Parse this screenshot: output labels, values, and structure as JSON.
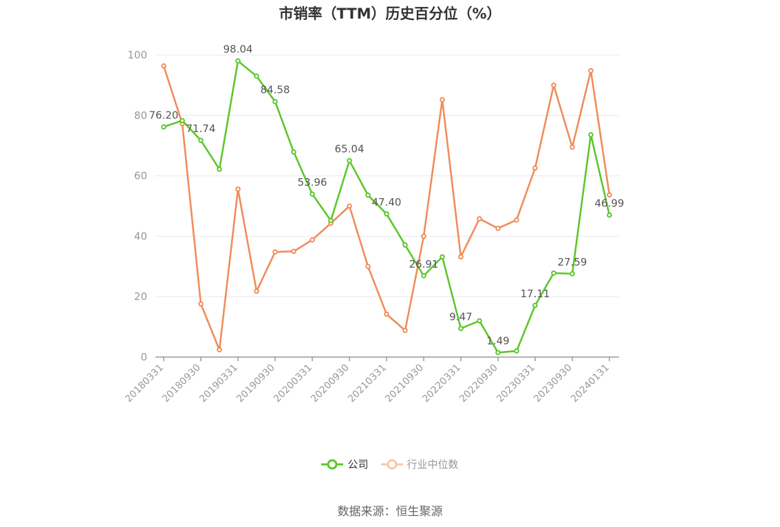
{
  "chart_data": {
    "type": "line",
    "title": "市销率（TTM）历史百分位（%）",
    "source": "数据来源：恒生聚源",
    "ylim": [
      0,
      100
    ],
    "yticks": [
      0,
      20,
      40,
      60,
      80,
      100
    ],
    "x_tick_labels": [
      "20180331",
      "20180930",
      "20190331",
      "20190930",
      "20200331",
      "20200930",
      "20210331",
      "20210930",
      "20220331",
      "20220930",
      "20230331",
      "20230930",
      "20240131"
    ],
    "x": [
      "20180331",
      "20180630",
      "20180930",
      "20181231",
      "20190331",
      "20190630",
      "20190930",
      "20191231",
      "20200331",
      "20200630",
      "20200930",
      "20201231",
      "20210331",
      "20210630",
      "20210930",
      "20211231",
      "20220331",
      "20220630",
      "20220930",
      "20221231",
      "20230331",
      "20230630",
      "20230930",
      "20231231",
      "20240131"
    ],
    "grid": true,
    "legend_position": "bottom",
    "series": [
      {
        "name": "公司",
        "color": "#5cc72b",
        "values": [
          76.2,
          78.3,
          71.74,
          62.2,
          98.04,
          93.0,
          84.58,
          67.9,
          53.96,
          45.2,
          65.04,
          53.6,
          47.4,
          37.1,
          26.91,
          33.2,
          9.47,
          12.0,
          1.49,
          2.0,
          17.11,
          27.8,
          27.59,
          73.6,
          46.99
        ],
        "labeled_points": [
          {
            "index": 0,
            "text": "76.20"
          },
          {
            "index": 2,
            "text": "71.74"
          },
          {
            "index": 4,
            "text": "98.04"
          },
          {
            "index": 6,
            "text": "84.58"
          },
          {
            "index": 8,
            "text": "53.96"
          },
          {
            "index": 10,
            "text": "65.04"
          },
          {
            "index": 12,
            "text": "47.40"
          },
          {
            "index": 14,
            "text": "26.91"
          },
          {
            "index": 16,
            "text": "9.47"
          },
          {
            "index": 18,
            "text": "1.49"
          },
          {
            "index": 20,
            "text": "17.11"
          },
          {
            "index": 22,
            "text": "27.59"
          },
          {
            "index": 24,
            "text": "46.99"
          }
        ]
      },
      {
        "name": "行业中位数",
        "color": "#f08c5a",
        "values": [
          96.4,
          77.3,
          17.6,
          2.4,
          55.6,
          21.8,
          34.8,
          35.0,
          38.8,
          44.3,
          50.0,
          30.0,
          14.2,
          8.8,
          40.0,
          85.2,
          33.2,
          45.8,
          42.6,
          45.4,
          62.6,
          90.0,
          69.5,
          94.8,
          53.7
        ]
      }
    ]
  }
}
